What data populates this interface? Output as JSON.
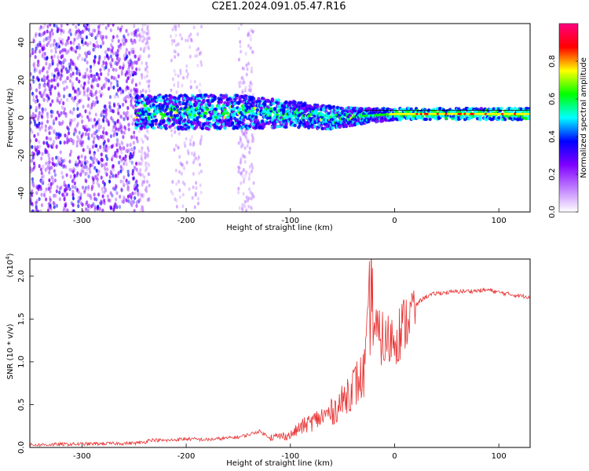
{
  "title": "C2E1.2024.091.05.47.R16",
  "chart_data": [
    {
      "type": "heatmap",
      "xlabel": "Height of straight line (km)",
      "ylabel": "Frequency (Hz)",
      "xlim": [
        -350,
        130
      ],
      "ylim": [
        -50,
        50
      ],
      "x_ticks": [
        -300,
        -200,
        -100,
        0,
        100
      ],
      "y_ticks": [
        -40,
        -20,
        0,
        20,
        40
      ],
      "colorbar": {
        "label": "Normalized spectral amplitude",
        "range": [
          0.0,
          1.0
        ],
        "ticks": [
          "0.0",
          "0.2",
          "0.4",
          "0.6",
          "0.8"
        ],
        "colors": [
          "#ffffff",
          "#c07fff",
          "#8000ff",
          "#0000ff",
          "#00ffff",
          "#00ff00",
          "#ffff00",
          "#ff0000",
          "#ff0080"
        ]
      },
      "features": {
        "noise_region_x": [
          -350,
          -245
        ],
        "band_center_hz": [
          {
            "x": -245,
            "y": 3
          },
          {
            "x": -150,
            "y": 3
          },
          {
            "x": -100,
            "y": 2
          },
          {
            "x": -60,
            "y": 0
          },
          {
            "x": -30,
            "y": 1
          },
          {
            "x": 0,
            "y": 2
          },
          {
            "x": 130,
            "y": 2
          }
        ],
        "band_halfwidth_hz": [
          {
            "x": -245,
            "y": 9
          },
          {
            "x": -150,
            "y": 9
          },
          {
            "x": -100,
            "y": 7
          },
          {
            "x": -60,
            "y": 6
          },
          {
            "x": -30,
            "y": 4
          },
          {
            "x": 0,
            "y": 3
          },
          {
            "x": 130,
            "y": 3
          }
        ]
      }
    },
    {
      "type": "line",
      "xlabel": "Height of straight line (km)",
      "ylabel": "SNR (10 * v/v)",
      "multiplier_label": "(x10",
      "multiplier_exp": "4",
      "xlim": [
        -350,
        130
      ],
      "ylim": [
        0,
        2.2
      ],
      "x_ticks": [
        -300,
        -200,
        -100,
        0,
        100
      ],
      "y_ticks": [
        "0.0",
        "0.5",
        "1.0",
        "1.5",
        "2.0"
      ],
      "series": [
        {
          "color": "#e83030",
          "x": [
            -350,
            -300,
            -250,
            -240,
            -235,
            -220,
            -200,
            -180,
            -150,
            -140,
            -130,
            -120,
            -100,
            -90,
            -80,
            -70,
            -60,
            -50,
            -45,
            -40,
            -35,
            -30,
            -26,
            -24,
            -22,
            -20,
            -18,
            -15,
            -12,
            -10,
            -5,
            0,
            5,
            10,
            15,
            20,
            25,
            30,
            40,
            60,
            80,
            90,
            100,
            110,
            120,
            130
          ],
          "y": [
            0.01,
            0.02,
            0.03,
            0.04,
            0.07,
            0.06,
            0.08,
            0.07,
            0.1,
            0.13,
            0.17,
            0.1,
            0.12,
            0.2,
            0.25,
            0.3,
            0.35,
            0.45,
            0.55,
            0.6,
            0.65,
            0.7,
            1.0,
            1.4,
            1.55,
            1.45,
            1.35,
            1.25,
            1.3,
            1.2,
            1.25,
            1.3,
            1.35,
            1.45,
            1.55,
            1.65,
            1.72,
            1.76,
            1.8,
            1.82,
            1.83,
            1.84,
            1.81,
            1.79,
            1.77,
            1.76
          ]
        }
      ]
    }
  ]
}
